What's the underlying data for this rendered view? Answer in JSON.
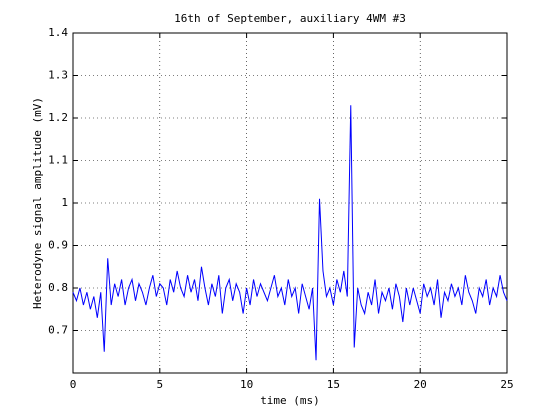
{
  "chart_data": {
    "type": "line",
    "title": "16th of September, auxiliary 4WM #3",
    "xlabel": "time (ms)",
    "ylabel": "Heterodyne signal amplitude (mV)",
    "xlim": [
      0,
      25
    ],
    "xticks": [
      0,
      5,
      10,
      15,
      20,
      25
    ],
    "ylim": [
      0.6,
      1.4
    ],
    "yticks": [
      0.7,
      0.8,
      0.9,
      1,
      1.1,
      1.2,
      1.3,
      1.4
    ],
    "grid": true,
    "series": [
      {
        "color": "#0000ff",
        "x": [
          0,
          0.2,
          0.4,
          0.6,
          0.8,
          1,
          1.2,
          1.4,
          1.6,
          1.8,
          2,
          2.2,
          2.4,
          2.6,
          2.8,
          3,
          3.2,
          3.4,
          3.6,
          3.8,
          4,
          4.2,
          4.4,
          4.6,
          4.8,
          5,
          5.2,
          5.4,
          5.6,
          5.8,
          6,
          6.2,
          6.4,
          6.6,
          6.8,
          7,
          7.2,
          7.4,
          7.6,
          7.8,
          8,
          8.2,
          8.4,
          8.6,
          8.8,
          9,
          9.2,
          9.4,
          9.6,
          9.8,
          10,
          10.2,
          10.4,
          10.6,
          10.8,
          11,
          11.2,
          11.4,
          11.6,
          11.8,
          12,
          12.2,
          12.4,
          12.6,
          12.8,
          13,
          13.2,
          13.4,
          13.6,
          13.8,
          14,
          14.2,
          14.4,
          14.6,
          14.8,
          15,
          15.2,
          15.4,
          15.6,
          15.8,
          16,
          16.2,
          16.4,
          16.6,
          16.8,
          17,
          17.2,
          17.4,
          17.6,
          17.8,
          18,
          18.2,
          18.4,
          18.6,
          18.8,
          19,
          19.2,
          19.4,
          19.6,
          19.8,
          20,
          20.2,
          20.4,
          20.6,
          20.8,
          21,
          21.2,
          21.4,
          21.6,
          21.8,
          22,
          22.2,
          22.4,
          22.6,
          22.8,
          23,
          23.2,
          23.4,
          23.6,
          23.8,
          24,
          24.2,
          24.4,
          24.6,
          24.8,
          25
        ],
        "values": [
          0.79,
          0.77,
          0.8,
          0.76,
          0.79,
          0.75,
          0.78,
          0.73,
          0.79,
          0.65,
          0.87,
          0.76,
          0.81,
          0.78,
          0.82,
          0.76,
          0.8,
          0.82,
          0.77,
          0.81,
          0.79,
          0.76,
          0.8,
          0.83,
          0.78,
          0.81,
          0.8,
          0.76,
          0.82,
          0.79,
          0.84,
          0.8,
          0.78,
          0.83,
          0.79,
          0.82,
          0.77,
          0.85,
          0.8,
          0.76,
          0.81,
          0.78,
          0.83,
          0.74,
          0.8,
          0.82,
          0.77,
          0.81,
          0.79,
          0.74,
          0.8,
          0.76,
          0.82,
          0.78,
          0.81,
          0.79,
          0.77,
          0.8,
          0.83,
          0.78,
          0.8,
          0.76,
          0.82,
          0.78,
          0.8,
          0.74,
          0.81,
          0.78,
          0.75,
          0.8,
          0.63,
          1.01,
          0.84,
          0.78,
          0.8,
          0.76,
          0.82,
          0.79,
          0.84,
          0.78,
          1.23,
          0.66,
          0.8,
          0.76,
          0.74,
          0.79,
          0.76,
          0.82,
          0.74,
          0.79,
          0.77,
          0.8,
          0.75,
          0.81,
          0.78,
          0.72,
          0.8,
          0.76,
          0.8,
          0.77,
          0.74,
          0.81,
          0.78,
          0.8,
          0.76,
          0.82,
          0.73,
          0.79,
          0.77,
          0.81,
          0.78,
          0.8,
          0.76,
          0.83,
          0.79,
          0.77,
          0.74,
          0.8,
          0.78,
          0.82,
          0.76,
          0.8,
          0.78,
          0.83,
          0.79,
          0.77
        ]
      }
    ]
  }
}
